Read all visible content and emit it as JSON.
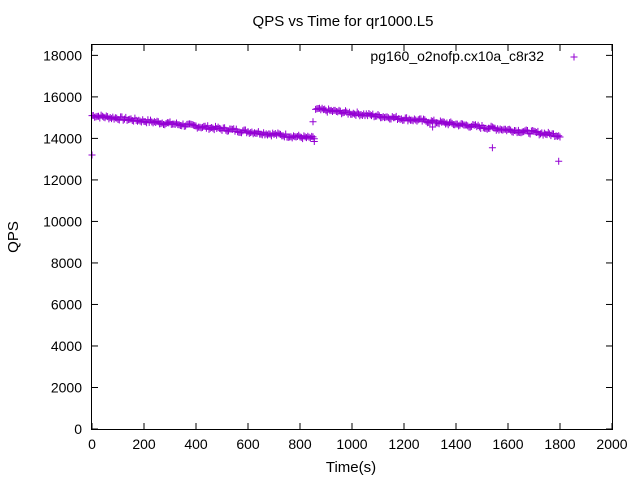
{
  "chart_data": {
    "type": "scatter",
    "title": "QPS vs Time for qr1000.L5",
    "xlabel": "Time(s)",
    "ylabel": "QPS",
    "xlim": [
      0,
      2000
    ],
    "ylim": [
      0,
      18500
    ],
    "xticks": [
      0,
      200,
      400,
      600,
      800,
      1000,
      1200,
      1400,
      1600,
      1800,
      2000
    ],
    "yticks": [
      0,
      2000,
      4000,
      6000,
      8000,
      10000,
      12000,
      14000,
      16000,
      18000
    ],
    "grid": false,
    "legend_position": "top-right",
    "marker": "+",
    "color": "#9400d3",
    "series": [
      {
        "name": "pg160_o2nofp.cx10a_c8r32",
        "segments": [
          {
            "x_start": 0,
            "x_end": 855,
            "y_start": 15100,
            "y_end": 14000,
            "interval": 5,
            "spread": 90
          },
          {
            "x_start": 860,
            "x_end": 1800,
            "y_start": 15400,
            "y_end": 14150,
            "interval": 5,
            "spread": 90
          }
        ],
        "outliers": [
          {
            "x": 0,
            "y": 13200
          },
          {
            "x": 850,
            "y": 14800
          },
          {
            "x": 855,
            "y": 13850
          },
          {
            "x": 1310,
            "y": 14550
          },
          {
            "x": 1540,
            "y": 13550
          },
          {
            "x": 1640,
            "y": 14300
          },
          {
            "x": 1795,
            "y": 12900
          }
        ]
      }
    ]
  }
}
